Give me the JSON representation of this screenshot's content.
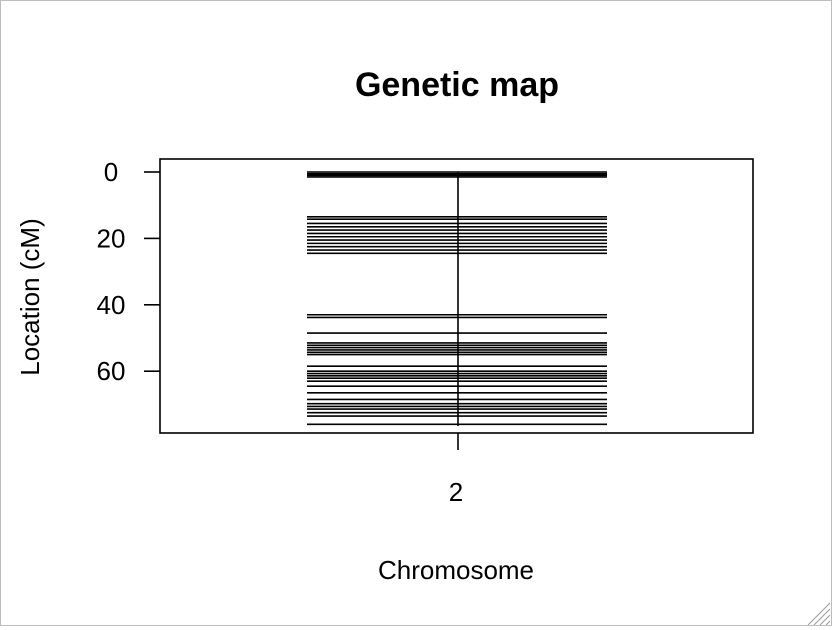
{
  "chart_data": {
    "type": "genetic-map",
    "title": "Genetic map",
    "xlabel": "Chromosome",
    "ylabel": "Location (cM)",
    "categories": [
      "2"
    ],
    "y_ticks": [
      "0",
      "20",
      "40",
      "60"
    ],
    "y_tick_values": [
      0,
      20,
      40,
      60
    ],
    "ylim": [
      0,
      77
    ],
    "chromosome_length": 76.5,
    "markers": [
      0.0,
      0.5,
      1.0,
      1.5,
      13.5,
      14.2,
      15.5,
      16.5,
      17.5,
      18.5,
      19.5,
      20.5,
      21.5,
      22.5,
      23.5,
      24.5,
      43.0,
      43.8,
      48.5,
      51.5,
      52.2,
      52.9,
      53.6,
      54.3,
      55.0,
      58.5,
      60.0,
      60.7,
      61.4,
      62.1,
      63.0,
      64.5,
      66.5,
      68.5,
      69.8,
      70.6,
      71.4,
      72.5,
      73.5,
      76.0
    ],
    "grid": false,
    "legend": "none"
  },
  "colors": {
    "line": "#000000",
    "background": "#ffffff",
    "window_border": "#bdbdbd"
  },
  "icons": {
    "resize_grip": "resize-grip-icon"
  }
}
